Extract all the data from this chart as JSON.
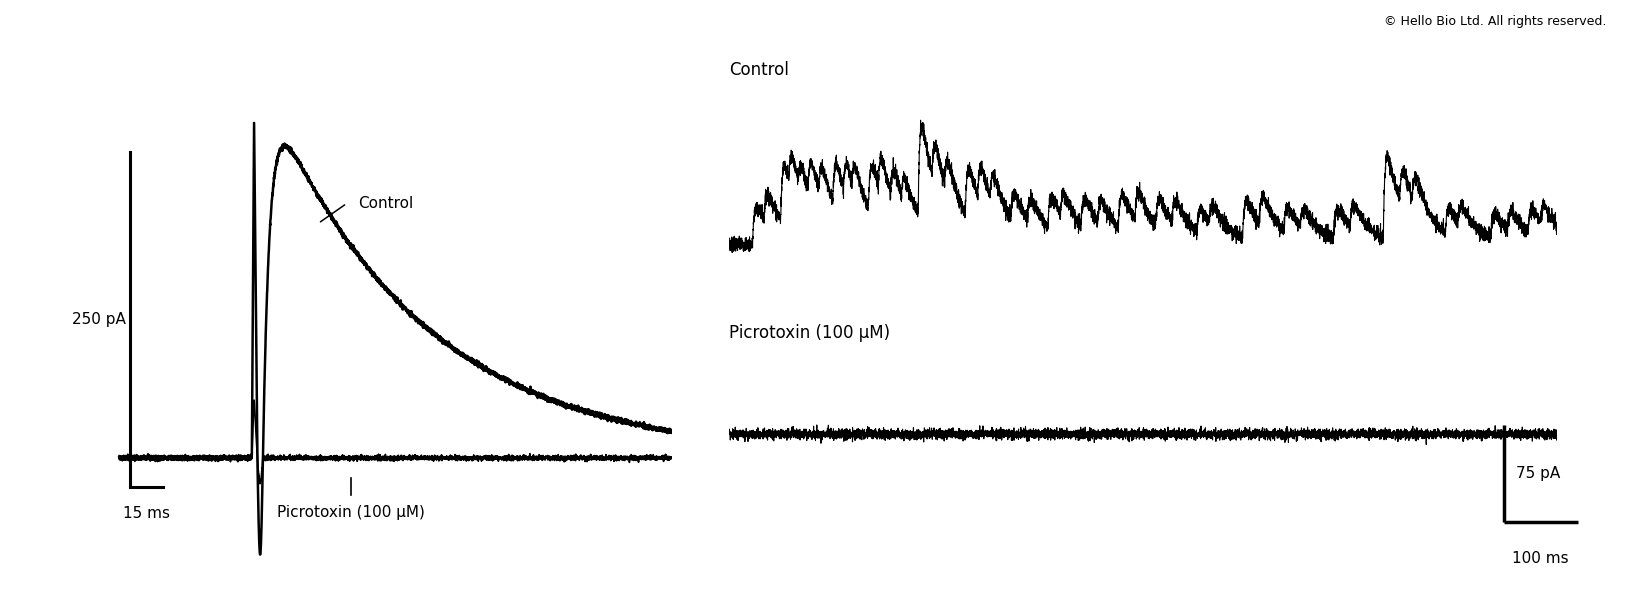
{
  "background_color": "#ffffff",
  "copyright_text": "© Hello Bio Ltd. All rights reserved.",
  "copyright_fontsize": 9,
  "left_panel": {
    "label_control": "Control",
    "label_picrotoxin": "Picrotoxin (100 μM)",
    "scalebar_y_label": "250 pA",
    "scalebar_x_label": "15 ms",
    "tick_label": "Picrotoxin (100 μM)"
  },
  "right_panel": {
    "label_control": "Control",
    "label_picrotoxin": "Picrotoxin (100 μM)",
    "scalebar_y_label": "75 pA",
    "scalebar_x_label": "100 ms"
  }
}
